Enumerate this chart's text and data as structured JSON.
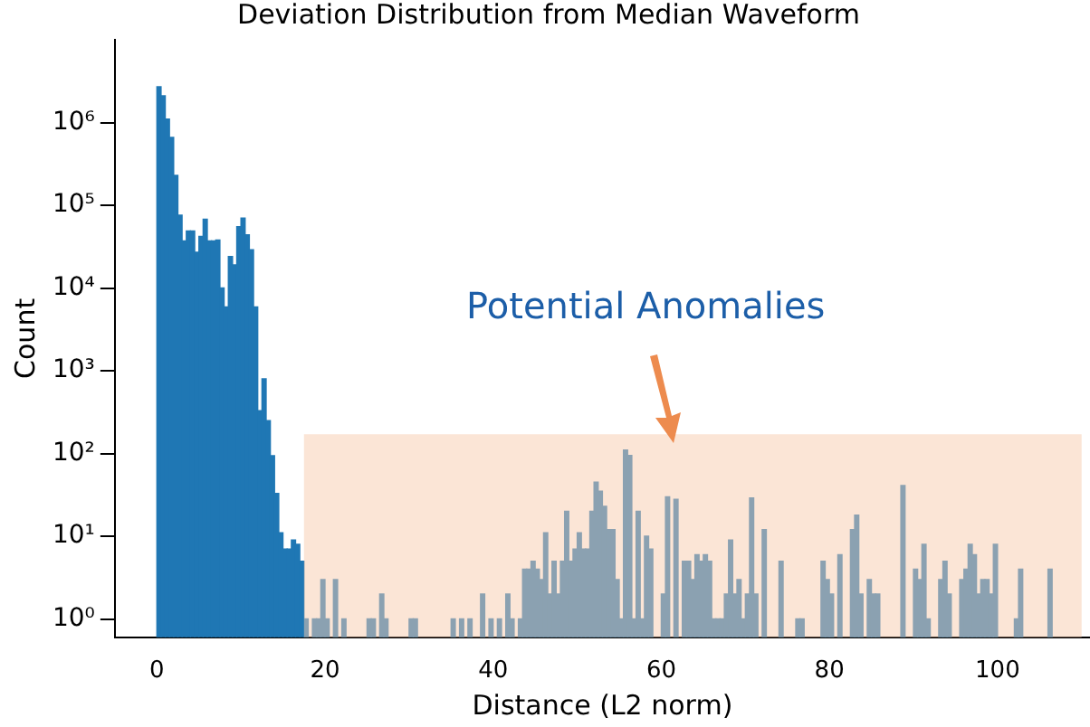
{
  "chart_data": {
    "type": "histogram",
    "title": "Deviation Distribution from Median Waveform",
    "xlabel": "Distance (L2 norm)",
    "ylabel": "Count",
    "bins": [
      0,
      0.5,
      1,
      1.5,
      2,
      2.5,
      3,
      3.5,
      4,
      4.5,
      5,
      5.5,
      6,
      6.5,
      7,
      7.5,
      8,
      8.5,
      9,
      9.5,
      10,
      10.5,
      11,
      11.5,
      12,
      12.5,
      13,
      13.5,
      14,
      14.5,
      15,
      15.5,
      16,
      16.5,
      17,
      17.5,
      18,
      18.5,
      19,
      19.5,
      20,
      20.5,
      21,
      21.5,
      22,
      22.5,
      23,
      23.5,
      24,
      24.5,
      25,
      25.5,
      26,
      26.5,
      27,
      27.5,
      28,
      28.5,
      29,
      29.5,
      30,
      30.5,
      31,
      31.5,
      32,
      32.5,
      33,
      33.5,
      34,
      34.5,
      35,
      35.5,
      36,
      36.5,
      37,
      37.5,
      38,
      38.5,
      39,
      39.5,
      40,
      40.5,
      41,
      41.5,
      42,
      42.5,
      43,
      43.5,
      44,
      44.5,
      45,
      45.5,
      46,
      46.5,
      47,
      47.5,
      48,
      48.5,
      49,
      49.5,
      50,
      50.5,
      51,
      51.5,
      52,
      52.5,
      53,
      53.5,
      54,
      54.5,
      55,
      55.5,
      56,
      56.5,
      57,
      57.5,
      58,
      58.5,
      59,
      59.5,
      60,
      60.5,
      61,
      61.5,
      62,
      62.5,
      63,
      63.5,
      64,
      64.5,
      65,
      65.5,
      66,
      66.5,
      67,
      67.5,
      68,
      68.5,
      69,
      69.5,
      70,
      70.5,
      71,
      71.5,
      72,
      72.5,
      73,
      73.5,
      74,
      74.5,
      75,
      75.5,
      76,
      76.5,
      77,
      77.5,
      78,
      78.5,
      79,
      79.5,
      80,
      80.5,
      81,
      81.5,
      82,
      82.5,
      83,
      83.5,
      84,
      84.5,
      85,
      85.5,
      86,
      86.5,
      87,
      87.5,
      88,
      88.5,
      89,
      89.5,
      90,
      90.5,
      91,
      91.5,
      92,
      92.5,
      93,
      93.5,
      94,
      94.5,
      95,
      95.5,
      96,
      96.5,
      97,
      97.5,
      98,
      98.5,
      99,
      99.5,
      100,
      100.5,
      101,
      101.5,
      102,
      102.5,
      103,
      103.5,
      104,
      104.5,
      105,
      105.5,
      106,
      106.5,
      107
    ],
    "values": [
      2700000,
      2100000,
      1100000,
      660000,
      230000,
      76000,
      37000,
      49000,
      49000,
      27000,
      42000,
      68000,
      37000,
      37000,
      38000,
      10000,
      5900,
      24000,
      19000,
      55000,
      70000,
      44000,
      29000,
      5900,
      330,
      800,
      250,
      94,
      33,
      11,
      7,
      7,
      9,
      8,
      5,
      1,
      null,
      1,
      1,
      3,
      1,
      null,
      3,
      null,
      1,
      null,
      null,
      null,
      null,
      null,
      1,
      1,
      null,
      2,
      1,
      null,
      null,
      null,
      null,
      null,
      1,
      1,
      null,
      null,
      null,
      null,
      null,
      null,
      null,
      null,
      1,
      null,
      1,
      null,
      1,
      null,
      null,
      2,
      null,
      1,
      null,
      1,
      null,
      2,
      1,
      null,
      1,
      4,
      4,
      5,
      4,
      3,
      11,
      2,
      5,
      2,
      5,
      20,
      5,
      7,
      11,
      7,
      7,
      20,
      45,
      35,
      23,
      12,
      12,
      3,
      1,
      110,
      95,
      1,
      20,
      1,
      10,
      7,
      null,
      null,
      2,
      30,
      null,
      28,
      null,
      5,
      5,
      3,
      6,
      5,
      6,
      5,
      1,
      1,
      1,
      2,
      9,
      2,
      3,
      1,
      2,
      29,
      2,
      null,
      12,
      null,
      null,
      null,
      5,
      null,
      null,
      null,
      1,
      1,
      null,
      null,
      null,
      null,
      5,
      3,
      2,
      null,
      6,
      null,
      null,
      12,
      18,
      2,
      null,
      3,
      2,
      2,
      null,
      null,
      null,
      null,
      null,
      41,
      null,
      null,
      4,
      3,
      8,
      1,
      null,
      null,
      3,
      5,
      2,
      null,
      null,
      3,
      4,
      8,
      6,
      2,
      3,
      3,
      2,
      8,
      null,
      null,
      null,
      null,
      1,
      4,
      null,
      null,
      null,
      null,
      null,
      null,
      4,
      null
    ],
    "color": "#1f77b4",
    "log": "y",
    "grid": false,
    "legend": false,
    "xlim": [
      -5,
      111
    ],
    "xticks": [
      0,
      20,
      40,
      60,
      80,
      100
    ],
    "ylim": [
      0.6,
      10000000
    ],
    "yticks": [
      {
        "value": 1,
        "label": "10⁰"
      },
      {
        "value": 10,
        "label": "10¹"
      },
      {
        "value": 100,
        "label": "10²"
      },
      {
        "value": 1000,
        "label": "10³"
      },
      {
        "value": 10000,
        "label": "10⁴"
      },
      {
        "value": 100000,
        "label": "10⁵"
      },
      {
        "value": 1000000,
        "label": "10⁶"
      }
    ],
    "bands": [
      {
        "axis": "x",
        "from": 17.5,
        "to": 110,
        "label": "Potential Anomalies",
        "color": "#f8cbad"
      }
    ]
  }
}
